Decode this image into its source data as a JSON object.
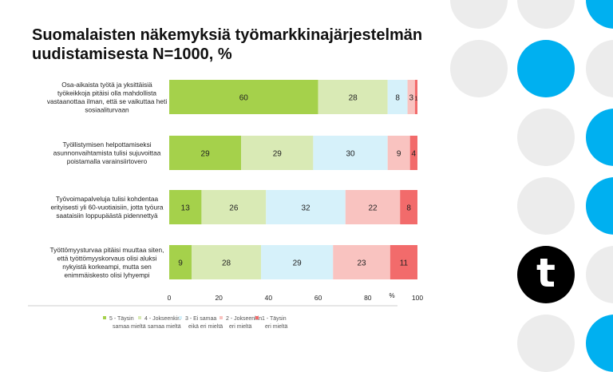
{
  "colors": {
    "blue": "#00b0f0",
    "gray": "#ececec"
  },
  "logo": {
    "letter": "t"
  },
  "chart_data": {
    "type": "bar",
    "orientation": "horizontal-stacked",
    "title": "Suomalaisten näkemyksiä työmarkkinajärjestelmän uudistamisesta N=1000, %",
    "categories": [
      "Osa-aikaista työtä ja yksittäisiä työkeikkoja pitäisi olla mahdollista vastaanottaa ilman, että se vaikuttaa heti sosiaaliturvaan",
      "Työllistymisen helpottamiseksi asunnonvaihtamista tulisi sujuvoittaa poistamalla varainsiirtovero",
      "Työvoimapalveluja tulisi kohdentaa erityisesti yli 60-vuotiaisiin, jotta työura saataisiin loppupäästä pidennettyä",
      "Työttömyysturvaa pitäisi muuttaa siten, että työttömyyskorvaus olisi aluksi nykyistä korkeampi, mutta sen enimmäiskesto olisi lyhyempi"
    ],
    "category_lines": [
      [
        "Osa-aikaista työtä ja yksittäisiä",
        "työkeikkoja pitäisi olla mahdollista",
        "vastaanottaa ilman, että se vaikuttaa heti",
        "sosiaaliturvaan"
      ],
      [
        "Työllistymisen helpottamiseksi",
        "asunnonvaihtamista tulisi sujuvoittaa",
        "poistamalla varainsiirtovero"
      ],
      [
        "Työvoimapalveluja tulisi kohdentaa",
        "erityisesti yli 60-vuotiaisiin, jotta työura",
        "saataisiin loppupäästä pidennettyä"
      ],
      [
        "Työttömyysturvaa pitäisi muuttaa siten,",
        "että työttömyyskorvaus olisi aluksi",
        "nykyistä korkeampi, mutta sen",
        "enimmäiskesto olisi lyhyempi"
      ]
    ],
    "series": [
      {
        "name": "5 - Täysin samaa mieltä",
        "lines": [
          "5 - Täysin",
          "samaa mieltä"
        ],
        "color": "#a5d14b",
        "values": [
          60,
          29,
          13,
          9
        ]
      },
      {
        "name": "4 - Jokseenkin samaa mieltä",
        "lines": [
          "4 - Jokseenkin",
          "samaa mieltä"
        ],
        "color": "#d9eab5",
        "values": [
          28,
          29,
          26,
          28
        ]
      },
      {
        "name": "3 - Ei samaa eikä eri mieltä",
        "lines": [
          "3 - Ei samaa",
          "eikä eri mieltä"
        ],
        "color": "#d6f1fa",
        "values": [
          8,
          30,
          32,
          29
        ]
      },
      {
        "name": "2 - Jokseenkin eri mieltä",
        "lines": [
          "2 - Jokseenkin",
          "eri mieltä"
        ],
        "color": "#f9c3c0",
        "values": [
          3,
          9,
          22,
          23
        ]
      },
      {
        "name": "1 - Täysin eri mieltä",
        "lines": [
          "1 - Täysin",
          "eri mieltä"
        ],
        "color": "#f26b6b",
        "values": [
          1,
          4,
          8,
          11
        ]
      }
    ],
    "xticks": [
      "0",
      "20",
      "40",
      "60",
      "80",
      "100"
    ],
    "xlabel": "%",
    "xlim": [
      0,
      100
    ],
    "legend": "bottom",
    "grid": false
  }
}
